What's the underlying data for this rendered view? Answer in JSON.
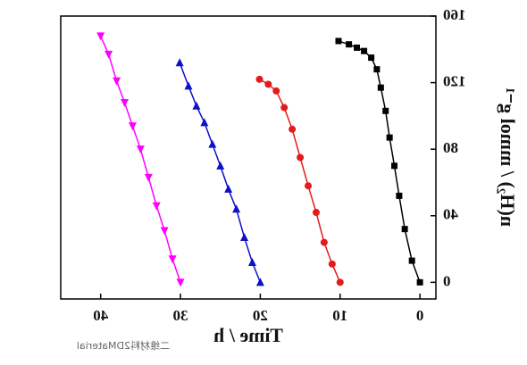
{
  "chart_data": {
    "type": "line",
    "x_label": "Time / h",
    "y_label": "n(H₂) / mmol g⁻¹",
    "watermark": "二维材料2DMaterial",
    "xlim": [
      -2,
      45
    ],
    "xticks": [
      0,
      10,
      20,
      30,
      40
    ],
    "ylim": [
      -10,
      160
    ],
    "yticks": [
      0,
      40,
      80,
      120,
      160
    ],
    "series": [
      {
        "color": "#000000",
        "marker": "square",
        "x": [
          0,
          1,
          1.9,
          2.6,
          3.2,
          3.8,
          4.3,
          4.9,
          5.4,
          6.1,
          7.0,
          7.9,
          8.9,
          10.2
        ],
        "values": [
          0,
          13,
          32,
          52,
          70,
          87,
          103,
          117,
          128,
          135,
          139,
          141,
          143,
          145
        ]
      },
      {
        "color": "#e41a1c",
        "marker": "circle",
        "x": [
          10,
          11,
          12,
          13,
          14,
          15,
          16,
          17,
          18,
          19,
          20.1
        ],
        "values": [
          0,
          11,
          24,
          42,
          58,
          75,
          92,
          105,
          115,
          119,
          122
        ]
      },
      {
        "color": "#1010c8",
        "marker": "triangle-up",
        "x": [
          20,
          21,
          22,
          23,
          24,
          25,
          26,
          27,
          28,
          29,
          30.1
        ],
        "values": [
          0,
          12,
          27,
          44,
          56,
          70,
          83,
          96,
          106,
          118,
          132
        ]
      },
      {
        "color": "#ff00ff",
        "marker": "triangle-down",
        "x": [
          30,
          31,
          32,
          33,
          34,
          35,
          36,
          37,
          38,
          39,
          40
        ],
        "values": [
          0,
          14,
          31,
          46,
          63,
          80,
          94,
          108,
          121,
          137,
          148
        ]
      }
    ]
  }
}
